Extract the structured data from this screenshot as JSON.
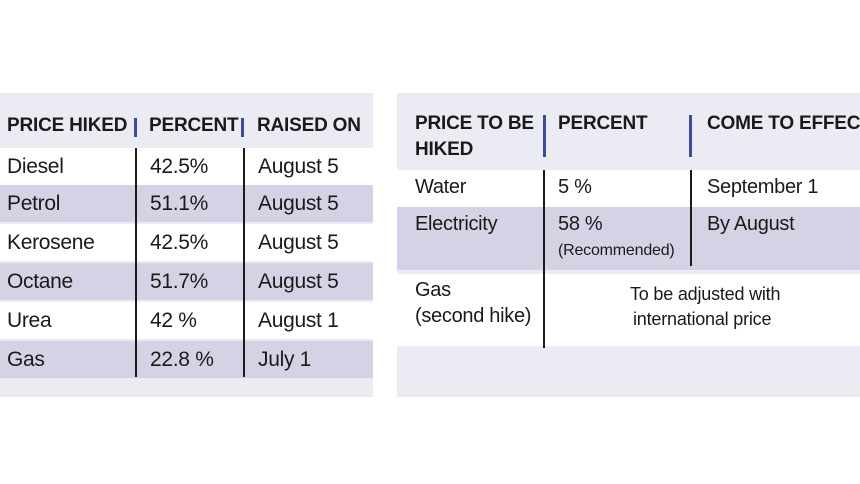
{
  "left_table": {
    "headers": [
      "PRICE HIKED",
      "PERCENT",
      "RAISED ON"
    ],
    "rows": [
      {
        "item": "Diesel",
        "percent": "42.5%",
        "date": "August 5"
      },
      {
        "item": "Petrol",
        "percent": "51.1%",
        "date": "August 5"
      },
      {
        "item": "Kerosene",
        "percent": "42.5%",
        "date": "August 5"
      },
      {
        "item": "Octane",
        "percent": "51.7%",
        "date": "August 5"
      },
      {
        "item": "Urea",
        "percent": "42 %",
        "date": "August 1"
      },
      {
        "item": "Gas",
        "percent": "22.8 %",
        "date": "July 1"
      }
    ]
  },
  "right_table": {
    "headers": {
      "item_line1": "PRICE TO BE",
      "item_line2": "HIKED",
      "percent": "PERCENT",
      "effect": "COME TO EFFECT"
    },
    "rows": [
      {
        "item": "Water",
        "percent": "5 %",
        "effect": "September 1"
      },
      {
        "item": "Electricity",
        "percent": "58 %",
        "note": "(Recommended)",
        "effect": "By August"
      },
      {
        "item_line1": "Gas",
        "item_line2": "(second hike)",
        "effect_line1": "To be adjusted with",
        "effect_line2": "international price"
      }
    ]
  },
  "colors": {
    "panel_bg": "#ebebf3",
    "row_highlight": "#d4d3e6",
    "accent_bar": "#3b4a9b"
  }
}
